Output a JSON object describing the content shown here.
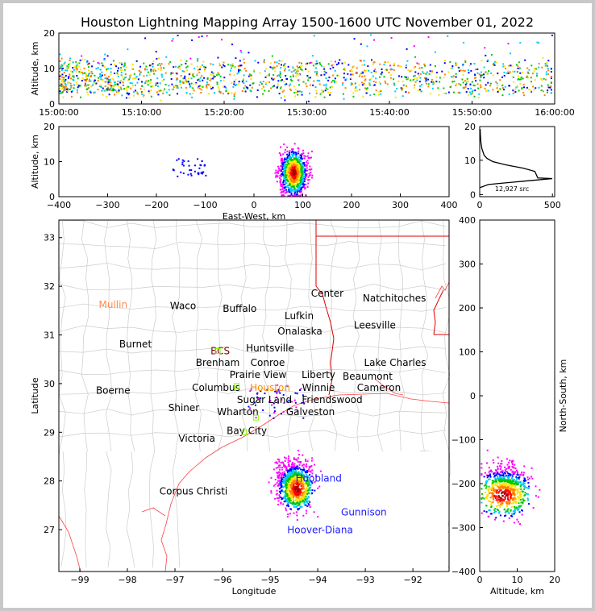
{
  "chart_data": [
    {
      "id": "time-height",
      "type": "scatter",
      "title": "Houston Lightning Mapping Array 1500-1600 UTC November 01, 2022",
      "ylabel": "Altitude, km",
      "xlim": [
        "15:00:00",
        "16:00:00"
      ],
      "xlim_min": [
        0,
        60
      ],
      "ylim": [
        0,
        20
      ],
      "xticks": [
        "15:00:00",
        "15:10:00",
        "15:20:00",
        "15:30:00",
        "15:40:00",
        "15:50:00",
        "16:00:00"
      ],
      "yticks": [
        "0",
        "10",
        "20"
      ],
      "altitude_band_km": [
        3,
        12
      ]
    },
    {
      "id": "east-west",
      "type": "scatter",
      "xlabel": "East-West, km",
      "ylabel": "Altitude, km",
      "xlim": [
        -400,
        400
      ],
      "ylim": [
        0,
        20
      ],
      "xticks": [
        "−400",
        "−300",
        "−200",
        "−100",
        "0",
        "100",
        "200",
        "300",
        "400"
      ],
      "yticks": [
        "0",
        "10",
        "20"
      ]
    },
    {
      "id": "altitude-histogram",
      "type": "line",
      "xlim": [
        0,
        500
      ],
      "ylim": [
        0,
        20
      ],
      "xticks": [
        "0",
        "500"
      ],
      "yticks": [
        "0",
        "10",
        "20"
      ],
      "annotation": "12,927 src",
      "profile": [
        [
          2,
          0
        ],
        [
          3,
          60
        ],
        [
          4,
          300
        ],
        [
          4.8,
          500
        ],
        [
          5,
          400
        ],
        [
          6,
          390
        ],
        [
          7,
          380
        ],
        [
          8,
          300
        ],
        [
          9,
          180
        ],
        [
          10,
          90
        ],
        [
          11,
          50
        ],
        [
          12,
          30
        ],
        [
          14,
          15
        ],
        [
          16,
          8
        ],
        [
          18,
          5
        ],
        [
          20,
          3
        ]
      ]
    },
    {
      "id": "plan-view",
      "type": "scatter",
      "xlabel": "Longitude",
      "ylabel": "Latitude",
      "xlim": [
        -99.44,
        -91.24
      ],
      "ylim": [
        26.14,
        33.36
      ],
      "xticks": [
        "−99",
        "−98",
        "−97",
        "−96",
        "−95",
        "−94",
        "−93",
        "−92"
      ],
      "yticks": [
        "27",
        "28",
        "29",
        "30",
        "31",
        "32",
        "33"
      ],
      "storm_center": [
        -94.5,
        27.95
      ],
      "cities": [
        {
          "name": "Mullin",
          "lon": -98.3,
          "lat": 31.62,
          "color": "#ff8c50"
        },
        {
          "name": "Waco",
          "lon": -96.83,
          "lat": 31.6,
          "color": "#000000"
        },
        {
          "name": "Buffalo",
          "lon": -95.64,
          "lat": 31.54,
          "color": "#000000"
        },
        {
          "name": "Center",
          "lon": -93.8,
          "lat": 31.85,
          "color": "#000000"
        },
        {
          "name": "Natchitoches",
          "lon": -92.39,
          "lat": 31.75,
          "color": "#000000"
        },
        {
          "name": "Lufkin",
          "lon": -94.39,
          "lat": 31.39,
          "color": "#000000"
        },
        {
          "name": "Leesville",
          "lon": -92.8,
          "lat": 31.2,
          "color": "#000000"
        },
        {
          "name": "Burnet",
          "lon": -97.83,
          "lat": 30.81,
          "color": "#000000"
        },
        {
          "name": "BCS",
          "lon": -96.05,
          "lat": 30.67,
          "color": "#800000"
        },
        {
          "name": "Huntsville",
          "lon": -95.0,
          "lat": 30.79,
          "color": "#000000"
        },
        {
          "name": "Onalaska",
          "lon": -94.59,
          "lat": 30.87,
          "color": "#000000"
        },
        {
          "name": "Conroe",
          "lon": -95.05,
          "lat": 30.39,
          "color": "#000000"
        },
        {
          "name": "Brenham",
          "lon": -95.88,
          "lat": 30.23,
          "color": "#000000"
        },
        {
          "name": "Prairie View",
          "lon": -95.34,
          "lat": 30.16,
          "color": "#000000"
        },
        {
          "name": "Liberty",
          "lon": -94.32,
          "lat": 30.13,
          "color": "#000000"
        },
        {
          "name": "Beaumont",
          "lon": -93.54,
          "lat": 30.14,
          "color": "#000000"
        },
        {
          "name": "Lake Charles",
          "lon": -92.51,
          "lat": 30.27,
          "color": "#000000"
        },
        {
          "name": "Boerne",
          "lon": -98.3,
          "lat": 29.86,
          "color": "#000000"
        },
        {
          "name": "Columbus",
          "lon": -95.96,
          "lat": 29.76,
          "color": "#000000"
        },
        {
          "name": "Houston",
          "lon": -94.91,
          "lat": 29.81,
          "color": "#ff8c00"
        },
        {
          "name": "Winnie",
          "lon": -94.02,
          "lat": 29.88,
          "color": "#000000"
        },
        {
          "name": "Cameron",
          "lon": -92.81,
          "lat": 29.84,
          "color": "#000000"
        },
        {
          "name": "Shiner",
          "lon": -96.78,
          "lat": 29.48,
          "color": "#000000"
        },
        {
          "name": "Sugar Land",
          "lon": -94.75,
          "lat": 29.65,
          "color": "#000000"
        },
        {
          "name": "Friendswood",
          "lon": -94.49,
          "lat": 29.56,
          "color": "#000000"
        },
        {
          "name": "Wharton",
          "lon": -95.59,
          "lat": 29.36,
          "color": "#000000"
        },
        {
          "name": "Galveston",
          "lon": -93.96,
          "lat": 29.35,
          "color": "#000000"
        },
        {
          "name": "Bay City",
          "lon": -95.49,
          "lat": 29.03,
          "color": "#000000"
        },
        {
          "name": "Victoria",
          "lon": -96.54,
          "lat": 28.87,
          "color": "#000000"
        },
        {
          "name": "Corpus Christi",
          "lon": -96.61,
          "lat": 27.79,
          "color": "#000000"
        },
        {
          "name": "Hoobland",
          "lon": -93.98,
          "lat": 28.05,
          "color": "#1a1aff"
        },
        {
          "name": "Gunnison",
          "lon": -93.03,
          "lat": 27.36,
          "color": "#1a1aff"
        },
        {
          "name": "Hoover-Diana",
          "lon": -93.95,
          "lat": 26.99,
          "color": "#1a1aff"
        }
      ]
    },
    {
      "id": "north-south",
      "type": "scatter",
      "xlabel": "Altitude, km",
      "ylabel": "North-South, km",
      "xlim": [
        0,
        20
      ],
      "ylim": [
        -400,
        400
      ],
      "xticks": [
        "0",
        "10",
        "20"
      ],
      "yticks": [
        "−400",
        "−300",
        "−200",
        "−100",
        "0",
        "100",
        "200",
        "300",
        "400"
      ]
    }
  ],
  "colors": {
    "density": [
      "#ff00ff",
      "#0000ff",
      "#00c8ff",
      "#00c800",
      "#ffe000",
      "#ff8000",
      "#ff0000",
      "#a00000",
      "#000000",
      "#ffffff"
    ],
    "coast": "#ff4040",
    "county": "#c8c8c8",
    "state": "#e00000"
  }
}
